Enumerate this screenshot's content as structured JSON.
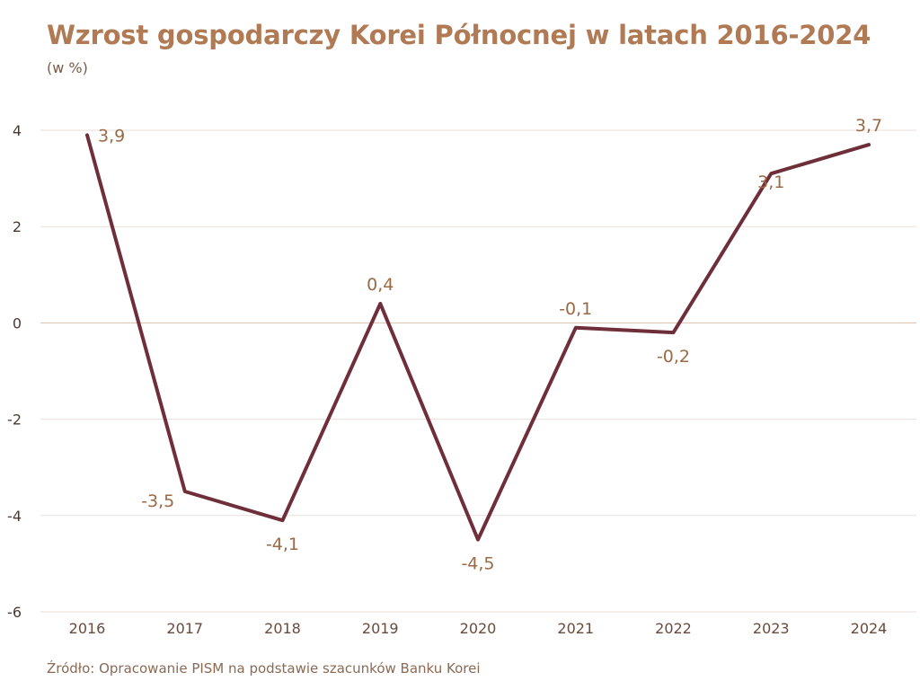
{
  "title": "Wzrost gospodarczy Korei Północnej w latach 2016-2024",
  "subtitle": "(w %)",
  "source": "Źródło: Opracowanie PISM na podstawie szacunków Banku Korei",
  "colors": {
    "line": "#6e2f3a",
    "title": "#b07a55",
    "labels": "#9a6a45",
    "grid": "#eadfd8",
    "zero_line": "#d8c0b0"
  },
  "chart_data": {
    "type": "line",
    "title": "Wzrost gospodarczy Korei Północnej w latach 2016-2024",
    "subtitle": "(w %)",
    "xlabel": "",
    "ylabel": "",
    "ylim": [
      -6,
      4
    ],
    "yticks": [
      4,
      2,
      0,
      -2,
      -4,
      -6
    ],
    "ytick_labels": [
      "4",
      "2",
      "0",
      "-2",
      "-4",
      "-6"
    ],
    "grid": true,
    "legend": "none",
    "categories": [
      "2016",
      "2017",
      "2018",
      "2019",
      "2020",
      "2021",
      "2022",
      "2023",
      "2024"
    ],
    "series": [
      {
        "values": [
          3.9,
          -3.5,
          -4.1,
          0.4,
          -4.5,
          -0.1,
          -0.2,
          3.1,
          3.7
        ],
        "labels": [
          "3,9",
          "-3,5",
          "-4,1",
          "0,4",
          "-4,5",
          "-0,1",
          "-0,2",
          "3,1",
          "3,7"
        ]
      }
    ]
  }
}
